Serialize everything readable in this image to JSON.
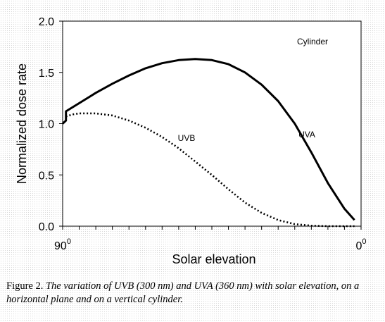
{
  "chart_data": {
    "type": "line",
    "xlabel": "Solar elevation",
    "ylabel": "Normalized dose rate",
    "xlim": [
      90,
      0
    ],
    "ylim": [
      0.0,
      2.0
    ],
    "x_tick_labels": [
      {
        "value": 90,
        "base": "90",
        "sup": "0"
      },
      {
        "value": 0,
        "base": "0",
        "sup": "0"
      }
    ],
    "y_ticks": [
      0.0,
      0.5,
      1.0,
      1.5,
      2.0
    ],
    "y_tick_labels": [
      "0.0",
      "0.5",
      "1.0",
      "1.5",
      "2.0"
    ],
    "grid": false,
    "annotations": [
      "Cylinder",
      "UVB",
      "UVA"
    ],
    "series": [
      {
        "name": "UVA",
        "style": "solid",
        "color": "#000000",
        "x": [
          90,
          89,
          89,
          85,
          80,
          75,
          70,
          65,
          60,
          55,
          50,
          45,
          40,
          35,
          30,
          25,
          20,
          15,
          10,
          5,
          2
        ],
        "y": [
          1.0,
          1.03,
          1.12,
          1.2,
          1.3,
          1.39,
          1.47,
          1.54,
          1.59,
          1.62,
          1.63,
          1.62,
          1.58,
          1.5,
          1.38,
          1.22,
          1.0,
          0.72,
          0.42,
          0.17,
          0.06
        ]
      },
      {
        "name": "UVB",
        "style": "dotted",
        "color": "#000000",
        "x": [
          89,
          87,
          85,
          80,
          75,
          70,
          65,
          60,
          55,
          50,
          45,
          40,
          35,
          30,
          25,
          20,
          15,
          10,
          5,
          2
        ],
        "y": [
          1.07,
          1.09,
          1.1,
          1.1,
          1.08,
          1.03,
          0.96,
          0.87,
          0.76,
          0.63,
          0.5,
          0.36,
          0.23,
          0.13,
          0.06,
          0.02,
          0.005,
          0.0,
          0.0,
          0.0
        ]
      }
    ]
  },
  "caption": {
    "prefix": "Figure 2. ",
    "text": "The variation of UVB (300 nm) and UVA (360 nm) with solar elevation, on a horizontal plane and on a vertical cylinder."
  }
}
